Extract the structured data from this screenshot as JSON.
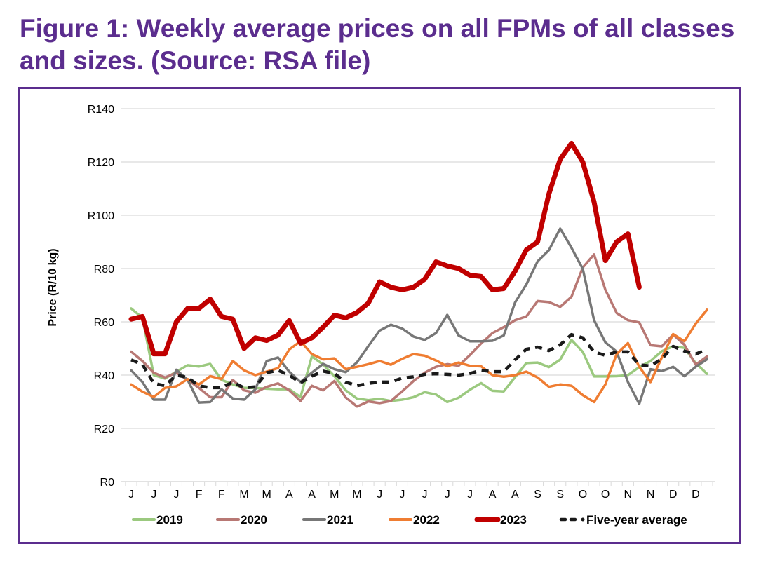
{
  "title": "Figure 1: Weekly average prices on all FPMs of all classes and sizes. (Source: RSA file)",
  "chart_data": {
    "type": "line",
    "title": "Figure 1: Weekly average prices on all FPMs of all classes and sizes. (Source: RSA file)",
    "xlabel": "",
    "ylabel": "Price (R/10 kg)",
    "ylim": [
      0,
      140
    ],
    "yticks": [
      0,
      20,
      40,
      60,
      80,
      100,
      120,
      140
    ],
    "ytick_labels": [
      "R0",
      "R20",
      "R40",
      "R60",
      "R80",
      "R100",
      "R120",
      "R140"
    ],
    "xtick_labels": [
      "J",
      "J",
      "J",
      "F",
      "F",
      "M",
      "M",
      "A",
      "A",
      "M",
      "M",
      "J",
      "J",
      "J",
      "J",
      "J",
      "A",
      "A",
      "S",
      "S",
      "O",
      "O",
      "N",
      "N",
      "D",
      "D"
    ],
    "weeks": 52,
    "grid": true,
    "legend_position": "bottom",
    "series": [
      {
        "name": "2019",
        "color": "#9bc97f",
        "width": 3.5,
        "dash": false,
        "values": [
          65,
          61.5,
          40,
          38.7,
          41.3,
          43.7,
          43.2,
          44.2,
          38.2,
          36.5,
          35.2,
          35.2,
          34.9,
          34.7,
          34.7,
          31.8,
          47,
          44,
          39.6,
          34.3,
          31.2,
          30.6,
          31.1,
          30.3,
          30.8,
          31.7,
          33.6,
          32.7,
          29.9,
          31.5,
          34.5,
          37,
          34.1,
          33.9,
          39.2,
          44.5,
          44.7,
          43,
          45.8,
          53.2,
          48.7,
          39.5,
          39.5,
          39.6,
          40,
          43,
          45.3,
          49,
          50.8,
          50.2,
          44.5,
          40.5
        ]
      },
      {
        "name": "2020",
        "color": "#b87874",
        "width": 3.5,
        "dash": false,
        "values": [
          48.8,
          45.3,
          40.9,
          39.1,
          40.9,
          38.2,
          35.2,
          31.7,
          31.7,
          38.2,
          34.3,
          33.4,
          35.6,
          36.9,
          34.3,
          30.3,
          36,
          34.3,
          37.8,
          31.6,
          28.2,
          30.1,
          29.5,
          30.3,
          33.9,
          37.8,
          40.9,
          43.1,
          44.1,
          43.5,
          47.5,
          51.9,
          55.8,
          58,
          60.6,
          62,
          67.8,
          67.4,
          65.6,
          69.4,
          80.4,
          85.3,
          72,
          63.3,
          60.6,
          59.8,
          51.2,
          50.8,
          55.2,
          51.4,
          43.9,
          47
        ]
      },
      {
        "name": "2021",
        "color": "#777777",
        "width": 3.5,
        "dash": false,
        "values": [
          41.8,
          37.4,
          30.8,
          30.8,
          42,
          38.2,
          29.7,
          29.9,
          34.7,
          31.2,
          30.8,
          34.7,
          45.3,
          46.6,
          41.3,
          37.4,
          40.9,
          44.2,
          42.2,
          41.1,
          44.8,
          50.9,
          56.7,
          58.9,
          57.5,
          54.5,
          53.2,
          55.8,
          62.6,
          54.9,
          52.7,
          52.7,
          52.9,
          54.9,
          67.2,
          74,
          82.7,
          86.9,
          95,
          87.8,
          79.9,
          60.6,
          52.3,
          48.8,
          37.4,
          29.2,
          42.2,
          41.5,
          43.1,
          39.6,
          43.1,
          45.9
        ]
      },
      {
        "name": "2022",
        "color": "#ef7d32",
        "width": 3.5,
        "dash": false,
        "values": [
          36.5,
          33.8,
          31.8,
          35.2,
          35.8,
          38.5,
          36.5,
          39.6,
          38.5,
          45.3,
          41.8,
          40,
          41.3,
          42.6,
          49.6,
          52.7,
          47.9,
          45.9,
          46.3,
          42.2,
          43.1,
          44.1,
          45.3,
          43.9,
          46.1,
          47.9,
          47.3,
          45.5,
          43.3,
          44.7,
          43.5,
          43.3,
          40,
          39.4,
          40,
          41.3,
          39.1,
          35.6,
          36.5,
          36,
          32.5,
          29.9,
          36.5,
          47.9,
          52,
          43.1,
          37.4,
          46.6,
          55.4,
          52.7,
          59.3,
          64.5
        ]
      },
      {
        "name": "2023",
        "color": "#c00000",
        "width": 7,
        "dash": false,
        "values": [
          61,
          62,
          48,
          48,
          60,
          65,
          65,
          68.5,
          62,
          61,
          50,
          54,
          53,
          55,
          60.5,
          52,
          54,
          58,
          62.5,
          61.5,
          63.5,
          67,
          75,
          73,
          72,
          73,
          76,
          82.5,
          81,
          80,
          77.5,
          77,
          72,
          72.5,
          79,
          87,
          90,
          108,
          121,
          127,
          120,
          105,
          83,
          90,
          93,
          73,
          null,
          null,
          null,
          null,
          null,
          null
        ]
      },
      {
        "name": "Five-year average",
        "color": "#1a1a1a",
        "width": 4.5,
        "dash": true,
        "values": [
          45.7,
          44,
          36.9,
          36,
          40,
          39.1,
          36,
          35.3,
          35.3,
          37.4,
          35.2,
          35.6,
          40.9,
          41.8,
          40,
          37.1,
          39.6,
          41.5,
          40.6,
          37.4,
          36,
          36.9,
          37.4,
          37.4,
          38.9,
          39.4,
          40.3,
          40.5,
          40.3,
          40,
          40.6,
          41.8,
          41.3,
          41.3,
          45.7,
          49.7,
          50.5,
          49.2,
          51.4,
          55.2,
          54,
          48.7,
          47.4,
          48.7,
          48.7,
          43.9,
          43.4,
          46.1,
          50.8,
          49,
          47.9,
          49.6
        ]
      }
    ]
  }
}
